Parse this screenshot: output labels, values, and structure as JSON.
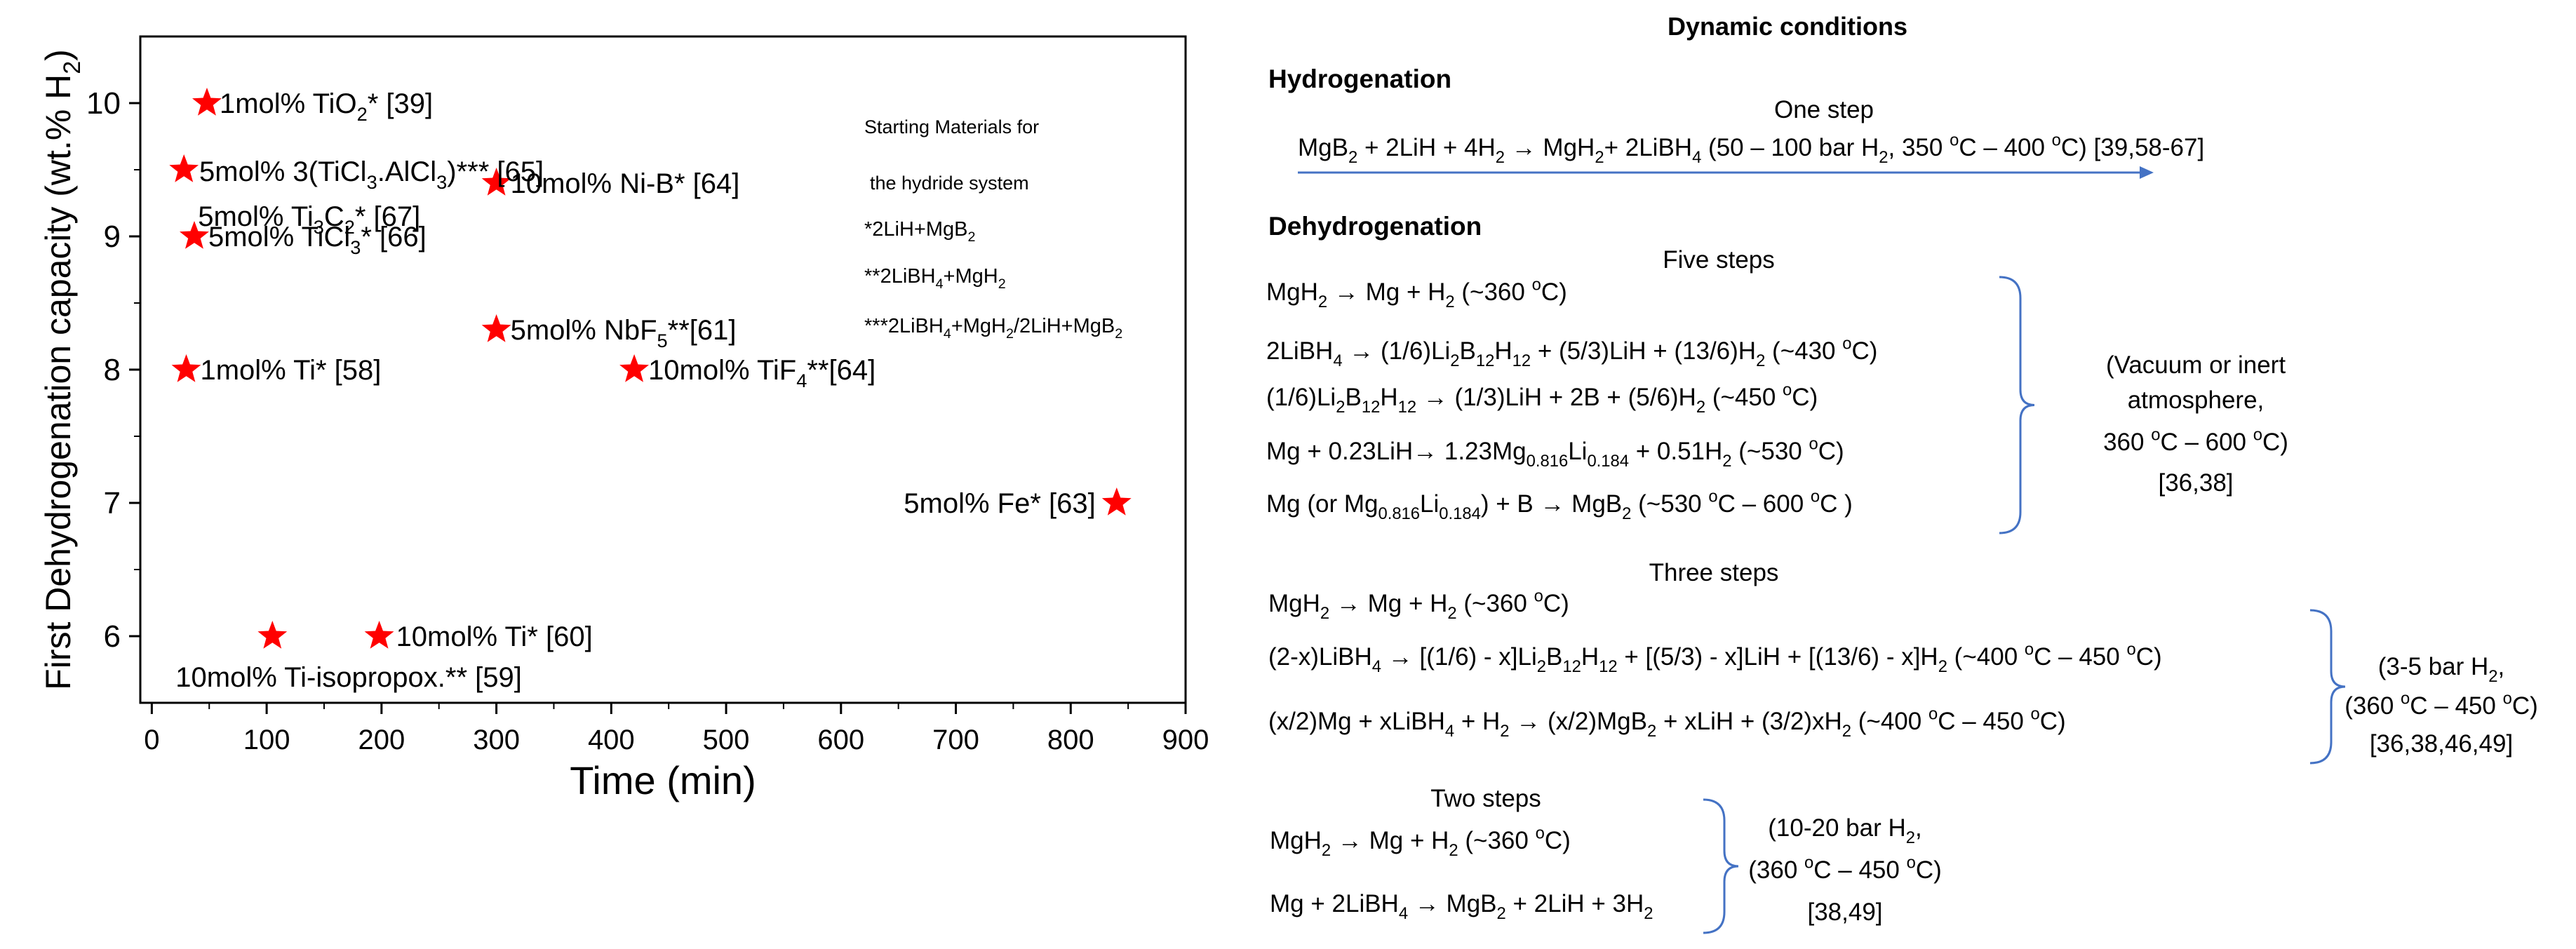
{
  "chart_data": {
    "type": "scatter",
    "xlabel": "Time (min)",
    "ylabel_main": "First Dehydrogenation capacity (wt.% H",
    "ylabel_sub": "2",
    "ylabel_close": ")",
    "xlim": [
      -10,
      900
    ],
    "ylim": [
      5.5,
      10.5
    ],
    "xticks": [
      "0",
      "100",
      "200",
      "300",
      "400",
      "500",
      "600",
      "700",
      "800",
      "900"
    ],
    "yticks": [
      "6",
      "7",
      "8",
      "9",
      "10"
    ],
    "marker_color": "#ff0000",
    "points": [
      {
        "x": 48,
        "y": 10.0,
        "label": [
          [
            "1mol% TiO",
            ""
          ],
          [
            "2",
            "sub"
          ],
          [
            "* [39]",
            ""
          ]
        ]
      },
      {
        "x": 28,
        "y": 9.5,
        "label": [
          [
            "5mol% Ti",
            ""
          ],
          [
            "3",
            "sub"
          ],
          [
            "C",
            ""
          ],
          [
            "2",
            "sub"
          ],
          [
            "* [67]",
            ""
          ]
        ]
      },
      {
        "x": 37,
        "y": 9.0,
        "label": [
          [
            "5mol% TiCl",
            ""
          ],
          [
            "3",
            "sub"
          ],
          [
            "* [66]",
            ""
          ]
        ]
      },
      {
        "x": 30,
        "y": 8.0,
        "label": [
          [
            "1mol% Ti* [58]",
            ""
          ]
        ]
      },
      {
        "x": 300,
        "y": 9.4,
        "label": [
          [
            "10mol% Ni-B* [64]",
            ""
          ]
        ]
      },
      {
        "x": 300,
        "y": 8.3,
        "label": [
          [
            "5mol% NbF",
            ""
          ],
          [
            "5",
            "sub"
          ],
          [
            "**[61]",
            ""
          ]
        ]
      },
      {
        "x": 420,
        "y": 8.0,
        "label": [
          [
            "10mol% TiF",
            ""
          ],
          [
            "4",
            "sub"
          ],
          [
            "**[64]",
            ""
          ]
        ]
      },
      {
        "x": 840,
        "y": 7.0,
        "label": [
          [
            "5mol% Fe* [63]",
            ""
          ]
        ]
      },
      {
        "x": 105,
        "y": 6.0,
        "label": [
          [
            "10mol% Ti-isopropox.** [59]",
            ""
          ]
        ]
      },
      {
        "x": 198,
        "y": 6.0,
        "label": [
          [
            "10mol% Ti* [60]",
            ""
          ]
        ]
      },
      {
        "x": null,
        "y": null,
        "label": [
          [
            "5mol% 3(TiCl",
            ""
          ],
          [
            "3",
            "sub"
          ],
          [
            ".AlCl",
            ""
          ],
          [
            "3",
            "sub"
          ],
          [
            ")*** [65]",
            ""
          ]
        ]
      }
    ],
    "legend": {
      "title1": "Starting Materials for",
      "title2": "the hydride system",
      "lines": [
        [
          [
            "*2LiH+MgB",
            ""
          ],
          [
            "2",
            "sub"
          ]
        ],
        [
          [
            "**2LiBH",
            ""
          ],
          [
            "4",
            "sub"
          ],
          [
            "+MgH",
            ""
          ],
          [
            "2",
            "sub"
          ]
        ],
        [
          [
            "***2LiBH",
            ""
          ],
          [
            "4",
            "sub"
          ],
          [
            "+MgH",
            ""
          ],
          [
            "2",
            "sub"
          ],
          [
            "/2LiH+MgB",
            ""
          ],
          [
            "2",
            "sub"
          ]
        ]
      ]
    }
  },
  "scheme": {
    "title": "Dynamic conditions",
    "hydrogenation": {
      "heading": "Hydrogenation",
      "step_label": "One step",
      "reaction": [
        [
          "MgB",
          ""
        ],
        [
          "2",
          "sub"
        ],
        [
          " + 2LiH + 4H",
          ""
        ],
        [
          "2",
          "sub"
        ],
        [
          " → MgH",
          ""
        ],
        [
          "2",
          "sub"
        ],
        [
          "+ 2LiBH",
          ""
        ],
        [
          "4",
          "sub"
        ],
        [
          " (50 – 100 bar H",
          ""
        ],
        [
          "2",
          "sub"
        ],
        [
          ", 350 ",
          ""
        ],
        [
          "o",
          "sup"
        ],
        [
          "C – 400 ",
          ""
        ],
        [
          "o",
          "sup"
        ],
        [
          "C) [39,58-67]",
          ""
        ]
      ],
      "arrow_color": "#4472c4"
    },
    "dehydrogenation": {
      "heading": "Dehydrogenation",
      "groups": [
        {
          "label": "Five steps",
          "reactions": [
            [
              [
                "MgH",
                ""
              ],
              [
                "2",
                "sub"
              ],
              [
                " → Mg + H",
                ""
              ],
              [
                "2",
                "sub"
              ],
              [
                " (~360 ",
                ""
              ],
              [
                "o",
                "sup"
              ],
              [
                "C)",
                ""
              ]
            ],
            [
              [
                "2LiBH",
                ""
              ],
              [
                "4",
                "sub"
              ],
              [
                " → (1/6)Li",
                ""
              ],
              [
                "2",
                "sub"
              ],
              [
                "B",
                ""
              ],
              [
                "12",
                "sub"
              ],
              [
                "H",
                ""
              ],
              [
                "12",
                "sub"
              ],
              [
                " + (5/3)LiH + (13/6)H",
                ""
              ],
              [
                "2",
                "sub"
              ],
              [
                " (~430 ",
                ""
              ],
              [
                "o",
                "sup"
              ],
              [
                "C)",
                ""
              ]
            ],
            [
              [
                "(1/6)Li",
                ""
              ],
              [
                "2",
                "sub"
              ],
              [
                "B",
                ""
              ],
              [
                "12",
                "sub"
              ],
              [
                "H",
                ""
              ],
              [
                "12",
                "sub"
              ],
              [
                " → (1/3)LiH + 2B + (5/6)H",
                ""
              ],
              [
                "2",
                "sub"
              ],
              [
                " (~450 ",
                ""
              ],
              [
                "o",
                "sup"
              ],
              [
                "C)",
                ""
              ]
            ],
            [
              [
                "Mg + 0.23LiH→ 1.23Mg",
                ""
              ],
              [
                "0.816",
                "sub"
              ],
              [
                "Li",
                ""
              ],
              [
                "0.184",
                "sub"
              ],
              [
                " + 0.51H",
                ""
              ],
              [
                "2",
                "sub"
              ],
              [
                " (~530 ",
                ""
              ],
              [
                "o",
                "sup"
              ],
              [
                "C)",
                ""
              ]
            ],
            [
              [
                "Mg (or Mg",
                ""
              ],
              [
                "0.816",
                "sub"
              ],
              [
                "Li",
                ""
              ],
              [
                "0.184",
                "sub"
              ],
              [
                ") + B → MgB",
                ""
              ],
              [
                "2",
                "sub"
              ],
              [
                " (~530 ",
                ""
              ],
              [
                "o",
                "sup"
              ],
              [
                "C – 600 ",
                ""
              ],
              [
                "o",
                "sup"
              ],
              [
                "C )",
                ""
              ]
            ]
          ],
          "conditions": [
            [
              [
                "(Vacuum or inert",
                ""
              ]
            ],
            [
              [
                "atmosphere,",
                ""
              ]
            ],
            [
              [
                "360 ",
                ""
              ],
              [
                "o",
                "sup"
              ],
              [
                "C – 600 ",
                ""
              ],
              [
                "o",
                "sup"
              ],
              [
                "C)",
                ""
              ]
            ],
            [
              [
                "[36,38]",
                ""
              ]
            ]
          ]
        },
        {
          "label": "Three steps",
          "reactions": [
            [
              [
                "MgH",
                ""
              ],
              [
                "2",
                "sub"
              ],
              [
                " → Mg + H",
                ""
              ],
              [
                "2",
                "sub"
              ],
              [
                " (~360 ",
                ""
              ],
              [
                "o",
                "sup"
              ],
              [
                "C)",
                ""
              ]
            ],
            [
              [
                "(2-x)LiBH",
                ""
              ],
              [
                "4",
                "sub"
              ],
              [
                " → [(1/6) - x]Li",
                ""
              ],
              [
                "2",
                "sub"
              ],
              [
                "B",
                ""
              ],
              [
                "12",
                "sub"
              ],
              [
                "H",
                ""
              ],
              [
                "12",
                "sub"
              ],
              [
                " + [(5/3) - x]LiH + [(13/6) - x]H",
                ""
              ],
              [
                "2",
                "sub"
              ],
              [
                "  (~400 ",
                ""
              ],
              [
                "o",
                "sup"
              ],
              [
                "C – 450 ",
                ""
              ],
              [
                "o",
                "sup"
              ],
              [
                "C)",
                ""
              ]
            ],
            [
              [
                "(x/2)Mg + xLiBH",
                ""
              ],
              [
                "4",
                "sub"
              ],
              [
                " + H",
                ""
              ],
              [
                "2",
                "sub"
              ],
              [
                " → (x/2)MgB",
                ""
              ],
              [
                "2",
                "sub"
              ],
              [
                " + xLiH + (3/2)xH",
                ""
              ],
              [
                "2",
                "sub"
              ],
              [
                "  (~400 ",
                ""
              ],
              [
                "o",
                "sup"
              ],
              [
                "C – 450 ",
                ""
              ],
              [
                "o",
                "sup"
              ],
              [
                "C)",
                ""
              ]
            ]
          ],
          "conditions": [
            [
              [
                "(3-5 bar H",
                ""
              ],
              [
                "2",
                "sub"
              ],
              [
                ",",
                ""
              ]
            ],
            [
              [
                "(360 ",
                ""
              ],
              [
                "o",
                "sup"
              ],
              [
                "C – 450 ",
                ""
              ],
              [
                "o",
                "sup"
              ],
              [
                "C)",
                ""
              ]
            ],
            [
              [
                "[36,38,46,49]",
                ""
              ]
            ]
          ]
        },
        {
          "label": "Two steps",
          "reactions": [
            [
              [
                "MgH",
                ""
              ],
              [
                "2",
                "sub"
              ],
              [
                " → Mg + H",
                ""
              ],
              [
                "2",
                "sub"
              ],
              [
                " (~360 ",
                ""
              ],
              [
                "o",
                "sup"
              ],
              [
                "C)",
                ""
              ]
            ],
            [
              [
                "Mg + 2LiBH",
                ""
              ],
              [
                "4",
                "sub"
              ],
              [
                " → MgB",
                ""
              ],
              [
                "2",
                "sub"
              ],
              [
                " + 2LiH + 3H",
                ""
              ],
              [
                "2",
                "sub"
              ]
            ]
          ],
          "conditions": [
            [
              [
                "(10-20 bar H",
                ""
              ],
              [
                "2",
                "sub"
              ],
              [
                ",",
                ""
              ]
            ],
            [
              [
                "(360 ",
                ""
              ],
              [
                "o",
                "sup"
              ],
              [
                "C – 450 ",
                ""
              ],
              [
                "o",
                "sup"
              ],
              [
                "C)",
                ""
              ]
            ],
            [
              [
                "[38,49]",
                ""
              ]
            ]
          ]
        }
      ]
    }
  }
}
